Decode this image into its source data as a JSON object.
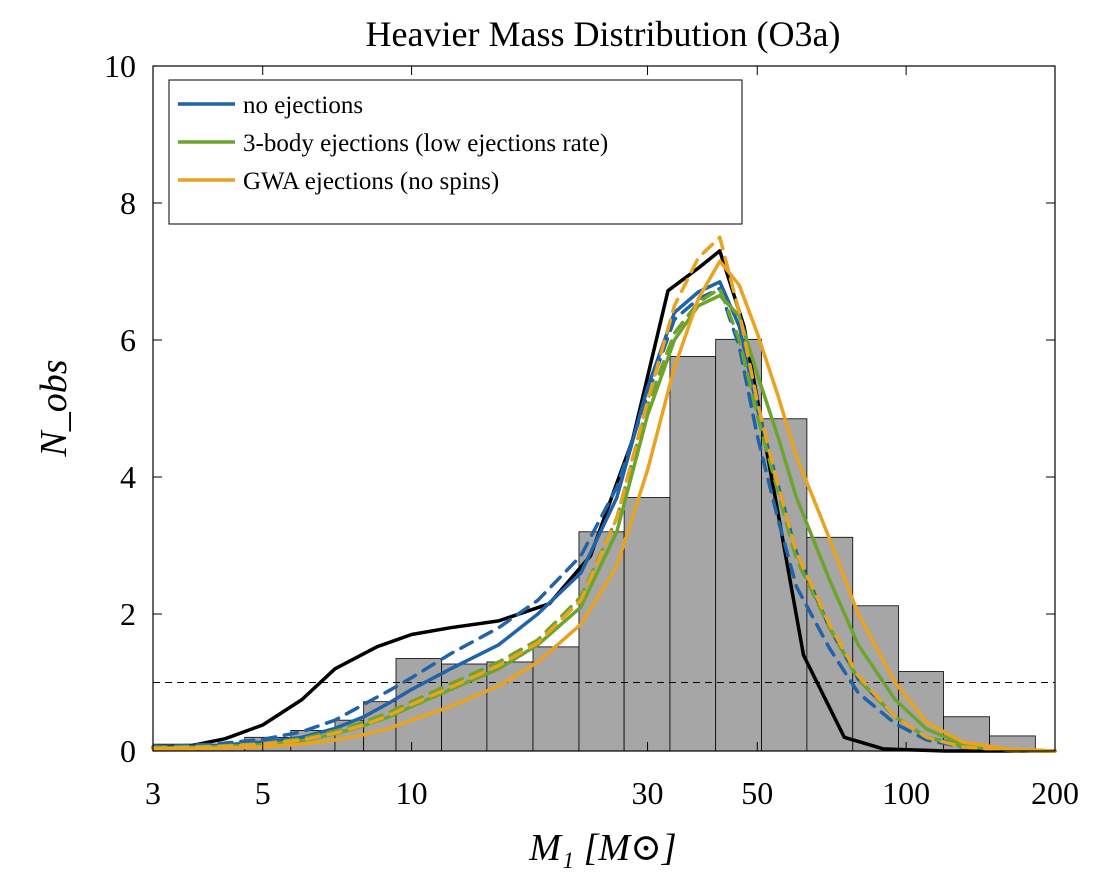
{
  "chart_data": {
    "type": "bar",
    "title": "Heavier Mass Distribution (O3a)",
    "xlabel": "M₁ [M⊙]",
    "ylabel": "N_obs",
    "x_scale": "log",
    "xlim": [
      3,
      200
    ],
    "ylim": [
      0,
      10
    ],
    "x_ticks": [
      3,
      5,
      10,
      30,
      50,
      100,
      200
    ],
    "y_ticks": [
      0,
      2,
      4,
      6,
      8,
      10
    ],
    "grid": false,
    "legend_position": "top-left",
    "reference_line": {
      "y": 1,
      "style": "dashed",
      "color": "#000000"
    },
    "histogram": {
      "color": "#a6a6a6",
      "edge_color": "#000000",
      "bins": [
        {
          "x0": 3.0,
          "x1": 3.7,
          "value": 0.1
        },
        {
          "x0": 3.7,
          "x1": 4.6,
          "value": 0.1
        },
        {
          "x0": 4.6,
          "x1": 5.7,
          "value": 0.2
        },
        {
          "x0": 5.7,
          "x1": 7.0,
          "value": 0.3
        },
        {
          "x0": 7.0,
          "x1": 8.0,
          "value": 0.45
        },
        {
          "x0": 8.0,
          "x1": 9.3,
          "value": 0.72
        },
        {
          "x0": 9.3,
          "x1": 11.5,
          "value": 1.35
        },
        {
          "x0": 11.5,
          "x1": 14.2,
          "value": 1.27
        },
        {
          "x0": 14.2,
          "x1": 17.6,
          "value": 1.3
        },
        {
          "x0": 17.6,
          "x1": 21.8,
          "value": 1.52
        },
        {
          "x0": 21.8,
          "x1": 26.9,
          "value": 3.2
        },
        {
          "x0": 26.9,
          "x1": 33.3,
          "value": 3.7
        },
        {
          "x0": 33.3,
          "x1": 41.2,
          "value": 5.76
        },
        {
          "x0": 41.2,
          "x1": 51.0,
          "value": 6.01
        },
        {
          "x0": 51.0,
          "x1": 63.0,
          "value": 4.85
        },
        {
          "x0": 63.0,
          "x1": 78.0,
          "value": 3.12
        },
        {
          "x0": 78.0,
          "x1": 96.5,
          "value": 2.12
        },
        {
          "x0": 96.5,
          "x1": 119.0,
          "value": 1.16
        },
        {
          "x0": 119.0,
          "x1": 147.5,
          "value": 0.5
        },
        {
          "x0": 147.5,
          "x1": 182.5,
          "value": 0.22
        }
      ]
    },
    "series": [
      {
        "color": "#000000",
        "style": "solid",
        "x": [
          3,
          3.6,
          4.2,
          5,
          6,
          7,
          8.5,
          10,
          12,
          15,
          19,
          23,
          28,
          33,
          38,
          42,
          47,
          55,
          62,
          75,
          90,
          120,
          200
        ],
        "values": [
          0.05,
          0.08,
          0.18,
          0.38,
          0.75,
          1.2,
          1.52,
          1.7,
          1.8,
          1.9,
          2.15,
          2.85,
          4.55,
          6.72,
          7.05,
          7.3,
          6.2,
          3.5,
          1.4,
          0.2,
          0.03,
          0.0,
          0.0
        ]
      },
      {
        "name": "no ejections",
        "color": "#1f63a8",
        "style": "solid",
        "x": [
          3,
          4,
          5,
          6,
          7,
          8,
          9,
          10,
          12,
          15,
          18,
          22,
          26,
          30,
          34,
          38,
          42,
          46,
          50,
          55,
          60,
          70,
          80,
          95,
          110,
          130,
          160,
          200
        ],
        "values": [
          0.05,
          0.08,
          0.13,
          0.2,
          0.33,
          0.5,
          0.7,
          0.9,
          1.2,
          1.55,
          2.0,
          2.6,
          3.7,
          5.3,
          6.4,
          6.7,
          6.85,
          6.2,
          5.0,
          3.9,
          2.9,
          1.8,
          1.05,
          0.5,
          0.2,
          0.08,
          0.02,
          0.0
        ]
      },
      {
        "color": "#1f63a8",
        "style": "dashed",
        "x": [
          3,
          4,
          5,
          6,
          7,
          8,
          9,
          10,
          12,
          15,
          18,
          22,
          26,
          30,
          34,
          38,
          42,
          46,
          50,
          55,
          60,
          70,
          80,
          95,
          110,
          130,
          160,
          200
        ],
        "values": [
          0.06,
          0.1,
          0.17,
          0.28,
          0.45,
          0.68,
          0.88,
          1.07,
          1.42,
          1.8,
          2.2,
          2.85,
          3.85,
          5.2,
          6.3,
          6.6,
          6.75,
          5.9,
          4.6,
          3.4,
          2.4,
          1.5,
          0.85,
          0.4,
          0.16,
          0.06,
          0.01,
          0.0
        ]
      },
      {
        "name": "3-body ejections (low ejections rate)",
        "color": "#6ea42d",
        "style": "solid",
        "x": [
          3,
          4,
          5,
          6,
          7,
          8,
          9,
          10,
          12,
          15,
          18,
          22,
          26,
          30,
          34,
          38,
          42,
          46,
          50,
          55,
          60,
          70,
          80,
          95,
          110,
          130,
          160,
          200
        ],
        "values": [
          0.04,
          0.06,
          0.09,
          0.15,
          0.25,
          0.37,
          0.5,
          0.65,
          0.9,
          1.2,
          1.55,
          2.1,
          3.2,
          4.9,
          6.0,
          6.5,
          6.65,
          6.35,
          5.5,
          4.6,
          3.7,
          2.5,
          1.55,
          0.75,
          0.32,
          0.1,
          0.02,
          0.0
        ]
      },
      {
        "color": "#6ea42d",
        "style": "dashed",
        "x": [
          3,
          4,
          5,
          6,
          7,
          8,
          9,
          10,
          12,
          15,
          18,
          22,
          26,
          30,
          34,
          38,
          42,
          46,
          50,
          55,
          60,
          70,
          80,
          95,
          110,
          130,
          160,
          200
        ],
        "values": [
          0.05,
          0.07,
          0.11,
          0.18,
          0.29,
          0.42,
          0.56,
          0.72,
          0.98,
          1.3,
          1.62,
          2.25,
          3.4,
          5.05,
          6.1,
          6.55,
          6.75,
          6.0,
          4.9,
          3.8,
          2.8,
          1.8,
          1.05,
          0.5,
          0.2,
          0.07,
          0.01,
          0.0
        ]
      },
      {
        "name": "GWA ejections (no spins)",
        "color": "#e8a320",
        "style": "solid",
        "x": [
          3,
          4,
          5,
          6,
          7,
          8,
          9,
          10,
          12,
          15,
          18,
          22,
          26,
          30,
          34,
          38,
          42,
          46,
          50,
          55,
          60,
          70,
          80,
          95,
          110,
          130,
          160,
          200
        ],
        "values": [
          0.03,
          0.04,
          0.06,
          0.1,
          0.16,
          0.24,
          0.33,
          0.45,
          0.65,
          0.95,
          1.3,
          1.85,
          2.7,
          4.1,
          5.6,
          6.6,
          7.15,
          6.8,
          6.1,
          5.2,
          4.3,
          3.1,
          2.0,
          1.0,
          0.42,
          0.13,
          0.03,
          0.0
        ]
      },
      {
        "color": "#e8a320",
        "style": "dashed",
        "x": [
          3,
          4,
          5,
          6,
          7,
          8,
          9,
          10,
          12,
          15,
          18,
          22,
          26,
          30,
          34,
          38,
          42,
          46,
          50,
          55,
          60,
          70,
          80,
          95,
          110,
          130,
          160,
          200
        ],
        "values": [
          0.04,
          0.06,
          0.1,
          0.16,
          0.26,
          0.38,
          0.52,
          0.68,
          0.93,
          1.25,
          1.58,
          2.2,
          3.4,
          5.1,
          6.5,
          7.2,
          7.5,
          6.4,
          5.1,
          3.9,
          2.9,
          1.85,
          1.1,
          0.5,
          0.2,
          0.06,
          0.01,
          0.0
        ]
      }
    ]
  }
}
